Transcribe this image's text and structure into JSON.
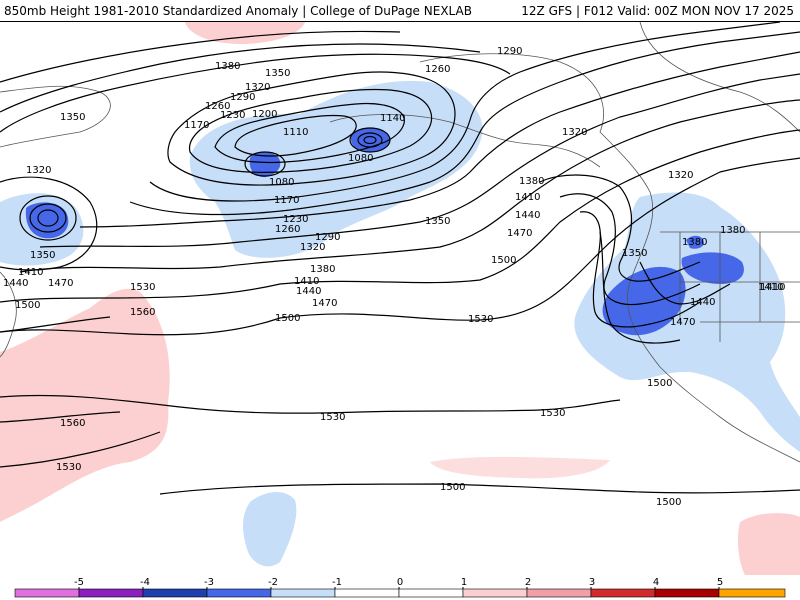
{
  "header": {
    "title_left": "850mb Height 1981-2010 Standardized Anomaly | College of DuPage NEXLAB",
    "title_right": "12Z GFS | F012 Valid: 00Z MON NOV 17 2025"
  },
  "colors": {
    "neg5": "#e070e0",
    "neg4": "#8c1fc0",
    "neg3": "#1f3fae",
    "neg2": "#4668e8",
    "neg1": "#c6def8",
    "zero_neg": "#ffffff",
    "zero_pos": "#ffffff",
    "pos1": "#fcd0d0",
    "pos2": "#f2a0a8",
    "pos3": "#d22b2b",
    "pos4": "#a80000",
    "pos5": "#ffa500"
  },
  "colorbar": {
    "ticks": [
      "-5",
      "-4",
      "-3",
      "-2",
      "-1",
      "0",
      "1",
      "2",
      "3",
      "4",
      "5"
    ]
  },
  "contour_labels": [
    "1290",
    "1260",
    "1380",
    "1350",
    "1320",
    "1290",
    "1260",
    "1230",
    "1200",
    "1170",
    "1350",
    "1110",
    "1140",
    "1080",
    "1080",
    "1320",
    "1320",
    "1170",
    "1380",
    "1410",
    "1230",
    "1260",
    "1440",
    "1290",
    "1320",
    "1350",
    "1470",
    "1380",
    "1500",
    "1350",
    "1410",
    "1440",
    "1470",
    "1500",
    "1530",
    "1380",
    "1410",
    "1440",
    "1470",
    "1500",
    "1350",
    "1380",
    "1410",
    "1440",
    "1470",
    "1500",
    "1530",
    "1560",
    "1530",
    "1560",
    "1530",
    "1530",
    "1500",
    "1500",
    "1410",
    "1320"
  ]
}
